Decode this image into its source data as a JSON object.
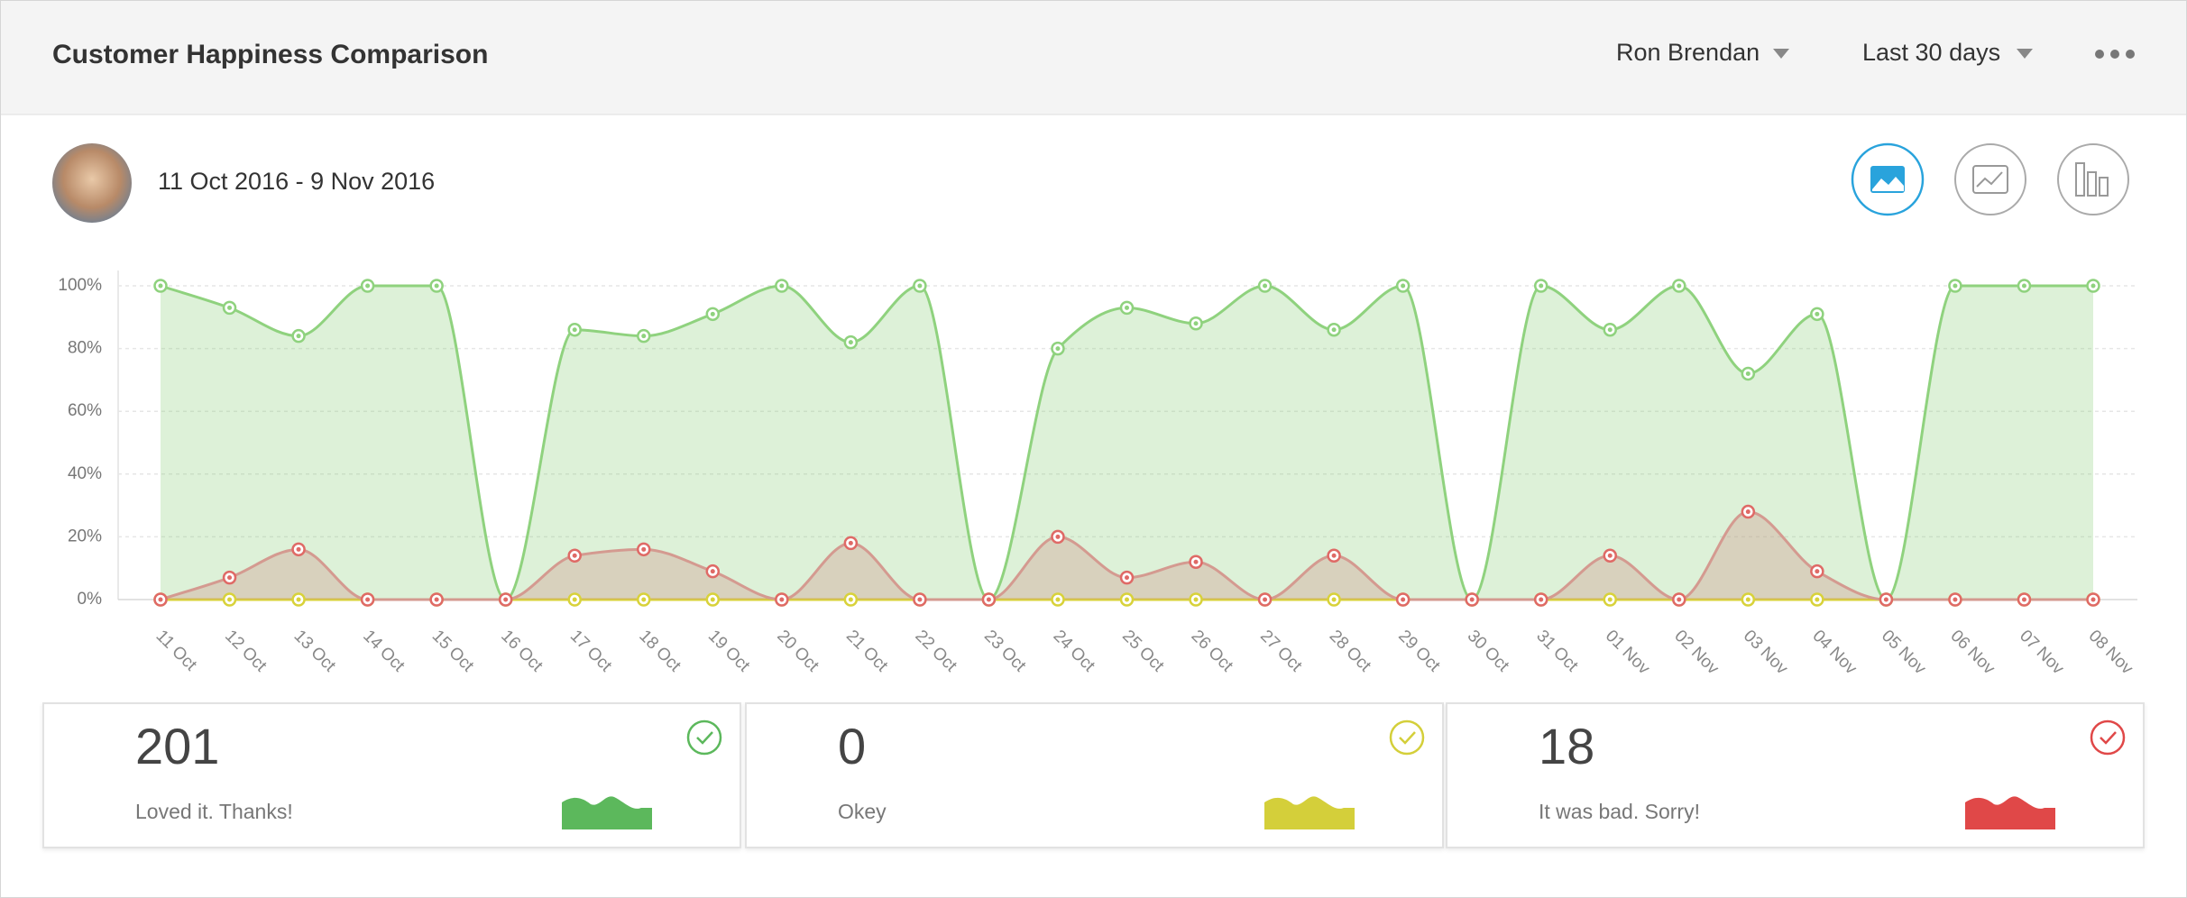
{
  "header": {
    "title": "Customer Happiness Comparison",
    "user": "Ron Brendan",
    "period": "Last 30 days"
  },
  "date_range": "11 Oct 2016 - 9 Nov 2016",
  "chart_data": {
    "type": "area",
    "categories": [
      "11 Oct",
      "12 Oct",
      "13 Oct",
      "14 Oct",
      "15 Oct",
      "16 Oct",
      "17 Oct",
      "18 Oct",
      "19 Oct",
      "20 Oct",
      "21 Oct",
      "22 Oct",
      "23 Oct",
      "24 Oct",
      "25 Oct",
      "26 Oct",
      "27 Oct",
      "28 Oct",
      "29 Oct",
      "30 Oct",
      "31 Oct",
      "01 Nov",
      "02 Nov",
      "03 Nov",
      "04 Nov",
      "05 Nov",
      "06 Nov",
      "07 Nov",
      "08 Nov"
    ],
    "series": [
      {
        "color": "#8fd27e",
        "values": [
          100,
          93,
          84,
          100,
          100,
          0,
          86,
          84,
          91,
          100,
          82,
          100,
          0,
          80,
          93,
          88,
          100,
          86,
          100,
          0,
          100,
          86,
          100,
          72,
          91,
          0,
          100,
          100,
          100
        ]
      },
      {
        "color": "#d8d23a",
        "values": [
          0,
          0,
          0,
          0,
          0,
          0,
          0,
          0,
          0,
          0,
          0,
          0,
          0,
          0,
          0,
          0,
          0,
          0,
          0,
          0,
          0,
          0,
          0,
          0,
          0,
          0,
          0,
          0,
          0
        ]
      },
      {
        "color": "#df6a66",
        "values": [
          0,
          7,
          16,
          0,
          0,
          0,
          14,
          16,
          9,
          0,
          18,
          0,
          0,
          20,
          7,
          12,
          0,
          14,
          0,
          0,
          0,
          14,
          0,
          28,
          9,
          0,
          0,
          0,
          0
        ]
      }
    ],
    "ylim": [
      0,
      100
    ],
    "yticks": [
      {
        "value": 0,
        "label": "0%"
      },
      {
        "value": 20,
        "label": "20%"
      },
      {
        "value": 40,
        "label": "40%"
      },
      {
        "value": 60,
        "label": "60%"
      },
      {
        "value": 80,
        "label": "80%"
      },
      {
        "value": 100,
        "label": "100%"
      }
    ],
    "grid": true
  },
  "summary": [
    {
      "count": 201,
      "label": "Loved it. Thanks!",
      "color": "#5cb85c"
    },
    {
      "count": 0,
      "label": "Okey",
      "color": "#d4cf3a"
    },
    {
      "count": 18,
      "label": "It was bad. Sorry!",
      "color": "#e04848"
    }
  ]
}
